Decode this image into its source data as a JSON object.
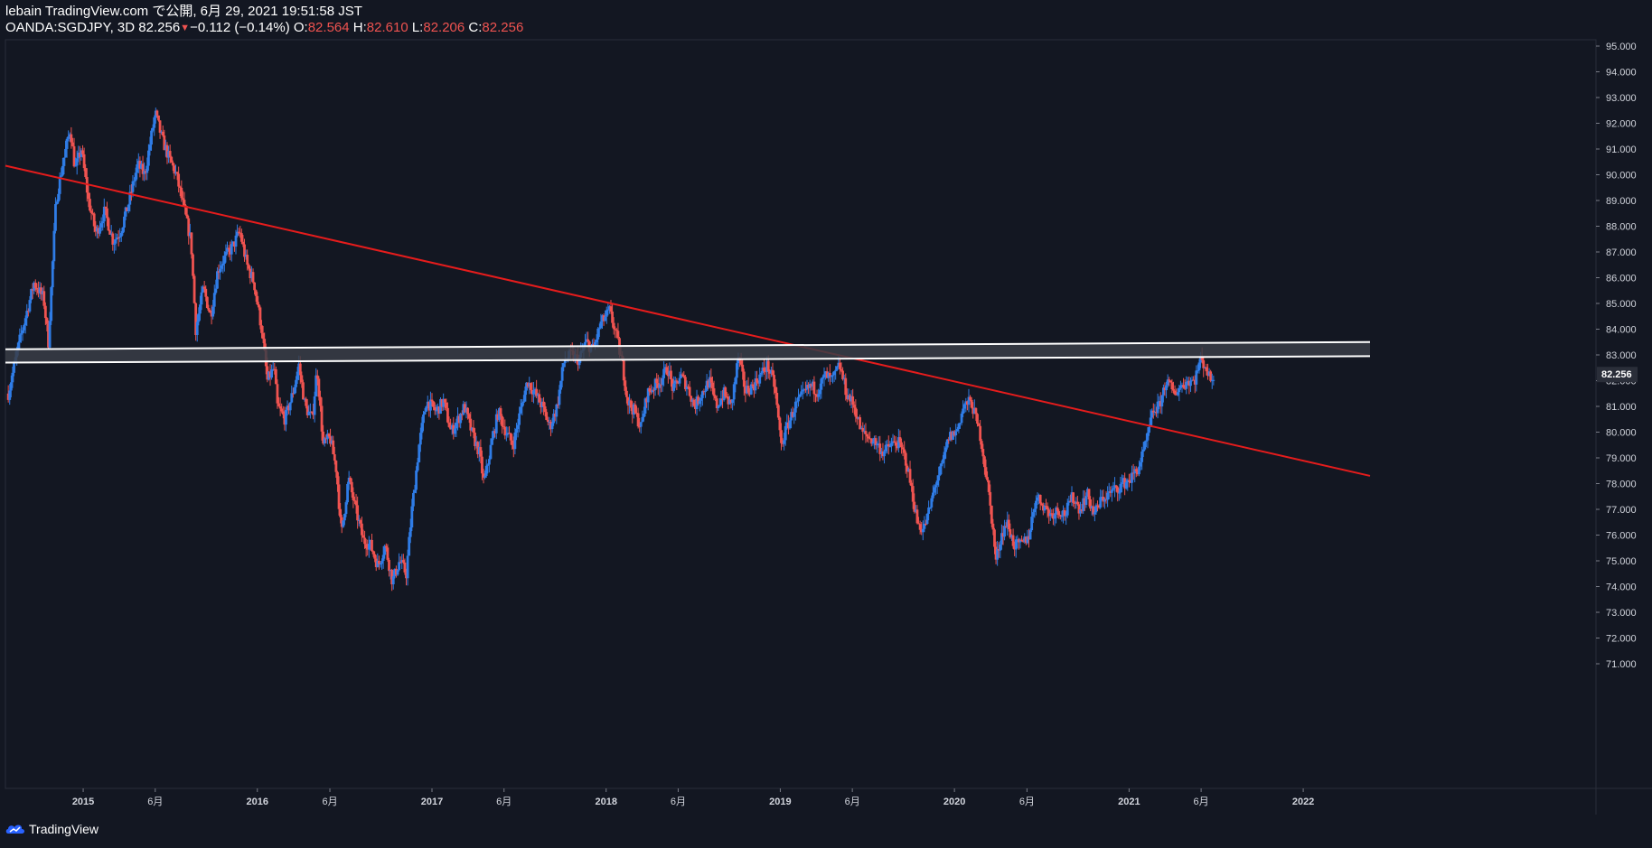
{
  "header": {
    "line1": "lebain TradingView.com で公開, 6月 29, 2021 19:51:58 JST",
    "symbol": "OANDA:SGDJPY, 3D",
    "last": "82.256",
    "change": "−0.112 (−0.14%)",
    "o_label": "O:",
    "o_value": "82.564",
    "h_label": "H:",
    "h_value": "82.610",
    "l_label": "L:",
    "l_value": "82.206",
    "c_label": "C:",
    "c_value": "82.256"
  },
  "footer": {
    "brand": "TradingView",
    "logo_icon": "tradingview-logo-icon"
  },
  "colors": {
    "background": "#131722",
    "up": "#2f7ce6",
    "down": "#ef5350",
    "trendline": "#e51c1c",
    "zone_line": "#ffffff",
    "zone_fill": "#3a3d46",
    "grid_border": "#2a2e39",
    "axis_text": "#d1d4dc"
  },
  "chart_data": {
    "type": "candlestick",
    "symbol": "OANDA:SGDJPY",
    "interval": "3D",
    "y_ticks": [
      "95.000",
      "94.000",
      "93.000",
      "92.000",
      "91.000",
      "90.000",
      "89.000",
      "88.000",
      "87.000",
      "86.000",
      "85.000",
      "84.000",
      "83.000",
      "82.000",
      "81.000",
      "80.000",
      "79.000",
      "78.000",
      "77.000",
      "76.000",
      "75.000",
      "74.000",
      "73.000",
      "72.000",
      "71.000"
    ],
    "x_ticks": [
      {
        "label": "2015",
        "date": "2015-01-01",
        "bold": true
      },
      {
        "label": "6月",
        "date": "2015-06-01",
        "bold": false
      },
      {
        "label": "2016",
        "date": "2016-01-01",
        "bold": true
      },
      {
        "label": "6月",
        "date": "2016-06-01",
        "bold": false
      },
      {
        "label": "2017",
        "date": "2017-01-01",
        "bold": true
      },
      {
        "label": "6月",
        "date": "2017-06-01",
        "bold": false
      },
      {
        "label": "2018",
        "date": "2018-01-01",
        "bold": true
      },
      {
        "label": "6月",
        "date": "2018-06-01",
        "bold": false
      },
      {
        "label": "2019",
        "date": "2019-01-01",
        "bold": true
      },
      {
        "label": "6月",
        "date": "2019-06-01",
        "bold": false
      },
      {
        "label": "2020",
        "date": "2020-01-01",
        "bold": true
      },
      {
        "label": "6月",
        "date": "2020-06-01",
        "bold": false
      },
      {
        "label": "2021",
        "date": "2021-01-01",
        "bold": true
      },
      {
        "label": "6月",
        "date": "2021-06-01",
        "bold": false
      },
      {
        "label": "2022",
        "date": "2022-01-01",
        "bold": true
      }
    ],
    "x_range": [
      "2014-07-22",
      "2022-05-21"
    ],
    "y_range": [
      70.0,
      95.5
    ],
    "price_label": "82.256",
    "price_level": 82.256,
    "path": [
      [
        "2014-07-28",
        81.5
      ],
      [
        "2014-08-20",
        83.5
      ],
      [
        "2014-09-20",
        85.8
      ],
      [
        "2014-10-10",
        85.2
      ],
      [
        "2014-10-20",
        83.5
      ],
      [
        "2014-11-05",
        89.0
      ],
      [
        "2014-11-20",
        90.5
      ],
      [
        "2014-12-05",
        91.8
      ],
      [
        "2014-12-15",
        90.2
      ],
      [
        "2014-12-28",
        91.0
      ],
      [
        "2015-01-12",
        89.0
      ],
      [
        "2015-01-28",
        87.7
      ],
      [
        "2015-02-15",
        88.6
      ],
      [
        "2015-03-05",
        87.4
      ],
      [
        "2015-03-20",
        87.8
      ],
      [
        "2015-04-05",
        88.8
      ],
      [
        "2015-04-25",
        90.4
      ],
      [
        "2015-05-10",
        90.0
      ],
      [
        "2015-06-01",
        92.4
      ],
      [
        "2015-06-15",
        91.4
      ],
      [
        "2015-07-01",
        90.6
      ],
      [
        "2015-07-15",
        90.0
      ],
      [
        "2015-08-01",
        88.6
      ],
      [
        "2015-08-15",
        87.4
      ],
      [
        "2015-08-25",
        84.0
      ],
      [
        "2015-09-10",
        85.6
      ],
      [
        "2015-09-25",
        84.5
      ],
      [
        "2015-10-10",
        86.3
      ],
      [
        "2015-10-25",
        86.8
      ],
      [
        "2015-11-10",
        87.2
      ],
      [
        "2015-11-25",
        87.8
      ],
      [
        "2015-12-10",
        86.5
      ],
      [
        "2015-12-25",
        85.8
      ],
      [
        "2016-01-10",
        84.0
      ],
      [
        "2016-01-22",
        82.0
      ],
      [
        "2016-02-05",
        82.5
      ],
      [
        "2016-02-12",
        81.0
      ],
      [
        "2016-02-28",
        80.5
      ],
      [
        "2016-03-15",
        81.5
      ],
      [
        "2016-03-28",
        82.6
      ],
      [
        "2016-04-10",
        81.0
      ],
      [
        "2016-04-25",
        80.5
      ],
      [
        "2016-05-05",
        82.5
      ],
      [
        "2016-05-18",
        79.5
      ],
      [
        "2016-06-01",
        79.8
      ],
      [
        "2016-06-15",
        78.5
      ],
      [
        "2016-06-25",
        76.0
      ],
      [
        "2016-07-10",
        78.2
      ],
      [
        "2016-07-25",
        77.0
      ],
      [
        "2016-08-10",
        75.8
      ],
      [
        "2016-08-25",
        75.6
      ],
      [
        "2016-09-10",
        74.8
      ],
      [
        "2016-09-25",
        75.6
      ],
      [
        "2016-10-10",
        74.2
      ],
      [
        "2016-10-25",
        75.0
      ],
      [
        "2016-11-08",
        74.5
      ],
      [
        "2016-11-20",
        77.0
      ],
      [
        "2016-12-05",
        79.5
      ],
      [
        "2016-12-20",
        81.2
      ],
      [
        "2017-01-10",
        80.8
      ],
      [
        "2017-01-25",
        81.2
      ],
      [
        "2017-02-10",
        80.0
      ],
      [
        "2017-02-25",
        80.5
      ],
      [
        "2017-03-10",
        81.0
      ],
      [
        "2017-03-25",
        80.0
      ],
      [
        "2017-04-10",
        79.2
      ],
      [
        "2017-04-20",
        78.0
      ],
      [
        "2017-05-05",
        79.5
      ],
      [
        "2017-05-20",
        80.8
      ],
      [
        "2017-06-05",
        80.0
      ],
      [
        "2017-06-20",
        79.5
      ],
      [
        "2017-07-05",
        80.8
      ],
      [
        "2017-07-20",
        82.0
      ],
      [
        "2017-08-05",
        81.5
      ],
      [
        "2017-08-20",
        81.0
      ],
      [
        "2017-09-05",
        80.2
      ],
      [
        "2017-09-20",
        81.0
      ],
      [
        "2017-10-05",
        82.8
      ],
      [
        "2017-10-20",
        83.0
      ],
      [
        "2017-11-05",
        82.8
      ],
      [
        "2017-11-20",
        83.5
      ],
      [
        "2017-12-05",
        83.2
      ],
      [
        "2017-12-20",
        84.2
      ],
      [
        "2018-01-08",
        84.7
      ],
      [
        "2018-01-22",
        83.8
      ],
      [
        "2018-02-05",
        82.5
      ],
      [
        "2018-02-15",
        81.2
      ],
      [
        "2018-03-01",
        80.8
      ],
      [
        "2018-03-15",
        80.2
      ],
      [
        "2018-03-28",
        81.5
      ],
      [
        "2018-04-12",
        81.8
      ],
      [
        "2018-04-25",
        82.0
      ],
      [
        "2018-05-10",
        82.5
      ],
      [
        "2018-05-22",
        81.6
      ],
      [
        "2018-06-05",
        82.2
      ],
      [
        "2018-06-20",
        81.8
      ],
      [
        "2018-07-05",
        81.0
      ],
      [
        "2018-07-20",
        81.5
      ],
      [
        "2018-08-05",
        82.0
      ],
      [
        "2018-08-20",
        81.0
      ],
      [
        "2018-09-05",
        81.5
      ],
      [
        "2018-09-20",
        81.0
      ],
      [
        "2018-10-05",
        82.9
      ],
      [
        "2018-10-20",
        81.6
      ],
      [
        "2018-11-05",
        81.8
      ],
      [
        "2018-11-20",
        82.2
      ],
      [
        "2018-12-05",
        82.6
      ],
      [
        "2018-12-20",
        81.8
      ],
      [
        "2019-01-03",
        79.5
      ],
      [
        "2019-01-15",
        80.2
      ],
      [
        "2019-02-01",
        81.0
      ],
      [
        "2019-02-20",
        81.5
      ],
      [
        "2019-03-05",
        81.8
      ],
      [
        "2019-03-20",
        81.6
      ],
      [
        "2019-04-05",
        82.2
      ],
      [
        "2019-04-20",
        82.0
      ],
      [
        "2019-05-05",
        82.6
      ],
      [
        "2019-05-20",
        81.5
      ],
      [
        "2019-06-05",
        81.0
      ],
      [
        "2019-06-20",
        80.0
      ],
      [
        "2019-07-05",
        79.8
      ],
      [
        "2019-07-20",
        79.6
      ],
      [
        "2019-08-05",
        79.2
      ],
      [
        "2019-08-20",
        79.5
      ],
      [
        "2019-09-05",
        79.6
      ],
      [
        "2019-09-20",
        79.0
      ],
      [
        "2019-10-01",
        78.0
      ],
      [
        "2019-10-15",
        76.5
      ],
      [
        "2019-10-28",
        76.2
      ],
      [
        "2019-11-10",
        77.0
      ],
      [
        "2019-11-22",
        78.0
      ],
      [
        "2019-12-05",
        78.6
      ],
      [
        "2019-12-20",
        79.8
      ],
      [
        "2020-01-05",
        80.0
      ],
      [
        "2020-01-20",
        81.0
      ],
      [
        "2020-02-05",
        81.2
      ],
      [
        "2020-02-15",
        80.5
      ],
      [
        "2020-02-25",
        79.8
      ],
      [
        "2020-03-10",
        78.0
      ],
      [
        "2020-03-20",
        76.5
      ],
      [
        "2020-03-28",
        75.0
      ],
      [
        "2020-04-08",
        76.0
      ],
      [
        "2020-04-20",
        76.5
      ],
      [
        "2020-05-05",
        75.6
      ],
      [
        "2020-05-20",
        75.6
      ],
      [
        "2020-06-05",
        76.0
      ],
      [
        "2020-06-20",
        77.5
      ],
      [
        "2020-07-05",
        77.2
      ],
      [
        "2020-07-20",
        76.8
      ],
      [
        "2020-08-05",
        77.0
      ],
      [
        "2020-08-20",
        76.8
      ],
      [
        "2020-09-05",
        77.5
      ],
      [
        "2020-09-20",
        77.0
      ],
      [
        "2020-10-05",
        77.6
      ],
      [
        "2020-10-20",
        76.8
      ],
      [
        "2020-11-05",
        77.4
      ],
      [
        "2020-11-20",
        77.6
      ],
      [
        "2020-12-05",
        77.8
      ],
      [
        "2020-12-20",
        78.0
      ],
      [
        "2021-01-05",
        78.2
      ],
      [
        "2021-01-20",
        78.6
      ],
      [
        "2021-02-05",
        79.5
      ],
      [
        "2021-02-20",
        80.8
      ],
      [
        "2021-03-05",
        81.0
      ],
      [
        "2021-03-20",
        82.0
      ],
      [
        "2021-04-05",
        81.5
      ],
      [
        "2021-04-20",
        81.8
      ],
      [
        "2021-05-05",
        82.0
      ],
      [
        "2021-05-18",
        82.0
      ],
      [
        "2021-05-30",
        82.8
      ],
      [
        "2021-06-10",
        82.6
      ],
      [
        "2021-06-20",
        82.0
      ],
      [
        "2021-06-29",
        82.3
      ]
    ],
    "last_bar": {
      "open": 82.564,
      "high": 82.61,
      "low": 82.206,
      "close": 82.256
    },
    "drawings": [
      {
        "type": "trendline",
        "p1": [
          "2014-07-22",
          90.35
        ],
        "p2": [
          "2022-05-21",
          78.3
        ]
      },
      {
        "type": "parallel_channel",
        "top": [
          [
            "2014-07-22",
            83.22
          ],
          [
            "2022-05-21",
            83.5
          ]
        ],
        "bottom": [
          [
            "2014-07-22",
            82.7
          ],
          [
            "2022-05-21",
            82.95
          ]
        ]
      }
    ],
    "grid": false,
    "legend": "none"
  }
}
